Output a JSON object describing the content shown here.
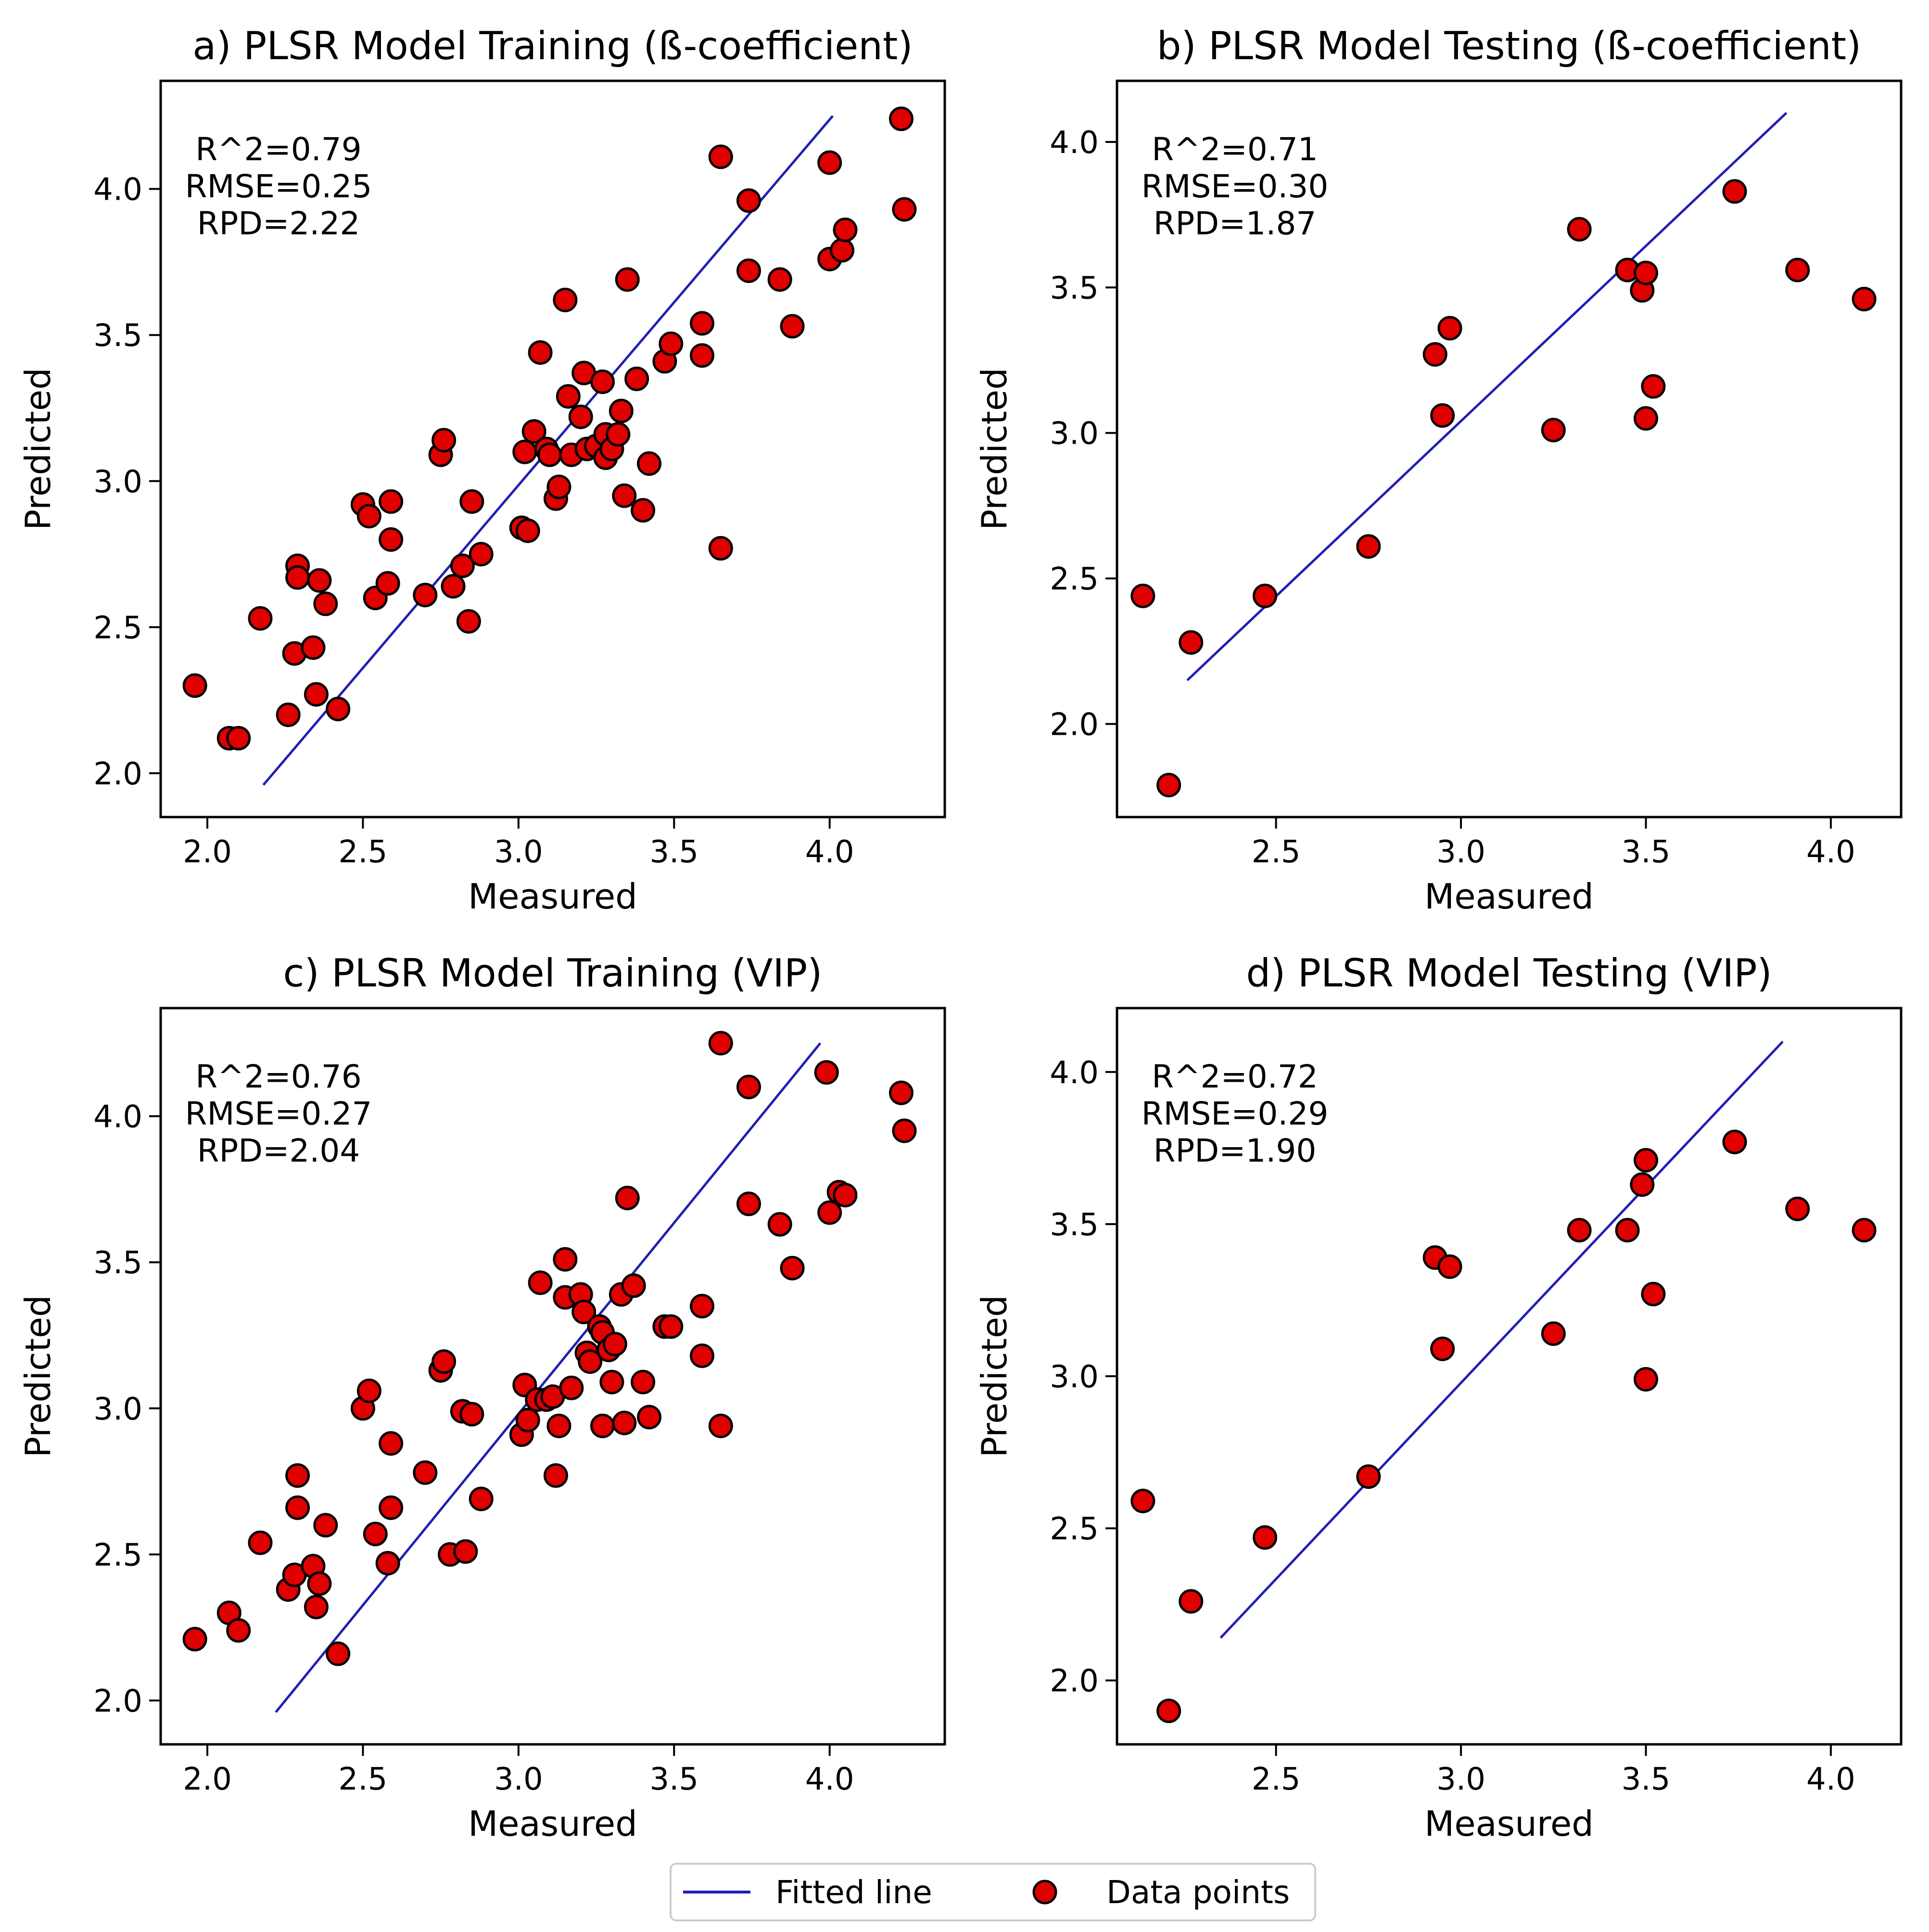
{
  "colors": {
    "line": "#1f1fb4",
    "point_fill": "#e00000",
    "point_edge": "#000000"
  },
  "legend": {
    "line_label": "Fitted line",
    "points_label": "Data points"
  },
  "chart_data": [
    {
      "type": "scatter",
      "title": "a) PLSR Model Training (ß-coefficient)",
      "xlabel": "Measured",
      "ylabel": "Predicted",
      "xlim": [
        1.85,
        4.37
      ],
      "ylim": [
        1.85,
        4.37
      ],
      "xticks": [
        2.0,
        2.5,
        3.0,
        3.5,
        4.0
      ],
      "yticks": [
        2.0,
        2.5,
        3.0,
        3.5,
        4.0
      ],
      "tick_labels_x": [
        "2.0",
        "2.5",
        "3.0",
        "3.5",
        "4.0"
      ],
      "tick_labels_y": [
        "2.0",
        "2.5",
        "3.0",
        "3.5",
        "4.0"
      ],
      "stats": [
        "R^2=0.79",
        "RMSE=0.25",
        "RPD=2.22"
      ],
      "fit_line": [
        [
          2.18,
          1.96
        ],
        [
          4.01,
          4.25
        ]
      ],
      "points": [
        [
          1.96,
          2.3
        ],
        [
          2.07,
          2.12
        ],
        [
          2.1,
          2.12
        ],
        [
          2.17,
          2.53
        ],
        [
          2.26,
          2.2
        ],
        [
          2.28,
          2.41
        ],
        [
          2.29,
          2.71
        ],
        [
          2.29,
          2.67
        ],
        [
          2.34,
          2.43
        ],
        [
          2.35,
          2.27
        ],
        [
          2.36,
          2.66
        ],
        [
          2.38,
          2.58
        ],
        [
          2.42,
          2.22
        ],
        [
          2.5,
          2.92
        ],
        [
          2.52,
          2.88
        ],
        [
          2.54,
          2.6
        ],
        [
          2.58,
          2.65
        ],
        [
          2.59,
          2.8
        ],
        [
          2.59,
          2.93
        ],
        [
          2.7,
          2.61
        ],
        [
          2.75,
          3.09
        ],
        [
          2.76,
          3.14
        ],
        [
          2.79,
          2.64
        ],
        [
          2.82,
          2.71
        ],
        [
          2.84,
          2.52
        ],
        [
          2.85,
          2.93
        ],
        [
          2.88,
          2.75
        ],
        [
          3.01,
          2.84
        ],
        [
          3.02,
          3.1
        ],
        [
          3.03,
          2.83
        ],
        [
          3.05,
          3.17
        ],
        [
          3.07,
          3.44
        ],
        [
          3.09,
          3.11
        ],
        [
          3.1,
          3.09
        ],
        [
          3.12,
          2.94
        ],
        [
          3.13,
          2.98
        ],
        [
          3.15,
          3.62
        ],
        [
          3.16,
          3.29
        ],
        [
          3.17,
          3.09
        ],
        [
          3.2,
          3.22
        ],
        [
          3.21,
          3.37
        ],
        [
          3.22,
          3.11
        ],
        [
          3.25,
          3.12
        ],
        [
          3.27,
          3.34
        ],
        [
          3.28,
          3.08
        ],
        [
          3.28,
          3.16
        ],
        [
          3.3,
          3.11
        ],
        [
          3.32,
          3.16
        ],
        [
          3.33,
          3.24
        ],
        [
          3.34,
          2.95
        ],
        [
          3.35,
          3.69
        ],
        [
          3.38,
          3.35
        ],
        [
          3.4,
          2.9
        ],
        [
          3.42,
          3.06
        ],
        [
          3.47,
          3.41
        ],
        [
          3.49,
          3.47
        ],
        [
          3.59,
          3.43
        ],
        [
          3.59,
          3.54
        ],
        [
          3.65,
          2.77
        ],
        [
          3.65,
          4.11
        ],
        [
          3.74,
          3.96
        ],
        [
          3.74,
          3.72
        ],
        [
          3.84,
          3.69
        ],
        [
          3.88,
          3.53
        ],
        [
          4.0,
          3.76
        ],
        [
          4.0,
          4.09
        ],
        [
          4.04,
          3.79
        ],
        [
          4.05,
          3.86
        ],
        [
          4.23,
          4.24
        ],
        [
          4.24,
          3.93
        ]
      ]
    },
    {
      "type": "scatter",
      "title": "b) PLSR Model Testing (ß-coefficient)",
      "xlabel": "Measured",
      "ylabel": "Predicted",
      "xlim": [
        2.07,
        4.19
      ],
      "ylim": [
        1.68,
        4.21
      ],
      "xticks": [
        2.5,
        3.0,
        3.5,
        4.0
      ],
      "yticks": [
        2.0,
        2.5,
        3.0,
        3.5,
        4.0
      ],
      "tick_labels_x": [
        "2.5",
        "3.0",
        "3.5",
        "4.0"
      ],
      "tick_labels_y": [
        "2.0",
        "2.5",
        "3.0",
        "3.5",
        "4.0"
      ],
      "stats": [
        "R^2=0.71",
        "RMSE=0.30",
        "RPD=1.87"
      ],
      "fit_line": [
        [
          2.26,
          2.15
        ],
        [
          3.88,
          4.1
        ]
      ],
      "points": [
        [
          2.14,
          2.44
        ],
        [
          2.21,
          1.79
        ],
        [
          2.27,
          2.28
        ],
        [
          2.47,
          2.44
        ],
        [
          2.75,
          2.61
        ],
        [
          2.93,
          3.27
        ],
        [
          2.95,
          3.06
        ],
        [
          2.97,
          3.36
        ],
        [
          3.25,
          3.01
        ],
        [
          3.32,
          3.7
        ],
        [
          3.45,
          3.56
        ],
        [
          3.49,
          3.49
        ],
        [
          3.5,
          3.05
        ],
        [
          3.5,
          3.55
        ],
        [
          3.52,
          3.16
        ],
        [
          3.74,
          3.83
        ],
        [
          3.91,
          3.56
        ],
        [
          4.09,
          3.46
        ]
      ]
    },
    {
      "type": "scatter",
      "title": "c) PLSR Model Training (VIP)",
      "xlabel": "Measured",
      "ylabel": "Predicted",
      "xlim": [
        1.85,
        4.37
      ],
      "ylim": [
        1.85,
        4.37
      ],
      "xticks": [
        2.0,
        2.5,
        3.0,
        3.5,
        4.0
      ],
      "yticks": [
        2.0,
        2.5,
        3.0,
        3.5,
        4.0
      ],
      "tick_labels_x": [
        "2.0",
        "2.5",
        "3.0",
        "3.5",
        "4.0"
      ],
      "tick_labels_y": [
        "2.0",
        "2.5",
        "3.0",
        "3.5",
        "4.0"
      ],
      "stats": [
        "R^2=0.76",
        "RMSE=0.27",
        "RPD=2.04"
      ],
      "fit_line": [
        [
          2.22,
          1.96
        ],
        [
          3.97,
          4.25
        ]
      ],
      "points": [
        [
          1.96,
          2.21
        ],
        [
          2.07,
          2.3
        ],
        [
          2.1,
          2.24
        ],
        [
          2.17,
          2.54
        ],
        [
          2.26,
          2.38
        ],
        [
          2.28,
          2.43
        ],
        [
          2.29,
          2.66
        ],
        [
          2.29,
          2.77
        ],
        [
          2.34,
          2.46
        ],
        [
          2.35,
          2.32
        ],
        [
          2.36,
          2.4
        ],
        [
          2.38,
          2.6
        ],
        [
          2.42,
          2.16
        ],
        [
          2.5,
          3.0
        ],
        [
          2.52,
          3.06
        ],
        [
          2.54,
          2.57
        ],
        [
          2.58,
          2.47
        ],
        [
          2.59,
          2.88
        ],
        [
          2.59,
          2.66
        ],
        [
          2.7,
          2.78
        ],
        [
          2.75,
          3.13
        ],
        [
          2.76,
          3.16
        ],
        [
          2.78,
          2.5
        ],
        [
          2.82,
          2.99
        ],
        [
          2.83,
          2.51
        ],
        [
          2.85,
          2.98
        ],
        [
          2.88,
          2.69
        ],
        [
          3.01,
          2.91
        ],
        [
          3.02,
          3.08
        ],
        [
          3.03,
          2.96
        ],
        [
          3.06,
          3.03
        ],
        [
          3.07,
          3.43
        ],
        [
          3.09,
          3.03
        ],
        [
          3.11,
          3.04
        ],
        [
          3.12,
          2.77
        ],
        [
          3.13,
          2.94
        ],
        [
          3.15,
          3.38
        ],
        [
          3.15,
          3.51
        ],
        [
          3.17,
          3.07
        ],
        [
          3.2,
          3.39
        ],
        [
          3.21,
          3.33
        ],
        [
          3.22,
          3.19
        ],
        [
          3.23,
          3.16
        ],
        [
          3.26,
          3.28
        ],
        [
          3.27,
          3.26
        ],
        [
          3.27,
          2.94
        ],
        [
          3.29,
          3.2
        ],
        [
          3.3,
          3.09
        ],
        [
          3.31,
          3.22
        ],
        [
          3.33,
          3.39
        ],
        [
          3.34,
          2.95
        ],
        [
          3.35,
          3.72
        ],
        [
          3.37,
          3.42
        ],
        [
          3.4,
          3.09
        ],
        [
          3.42,
          2.97
        ],
        [
          3.47,
          3.28
        ],
        [
          3.49,
          3.28
        ],
        [
          3.59,
          3.18
        ],
        [
          3.59,
          3.35
        ],
        [
          3.65,
          2.94
        ],
        [
          3.65,
          4.25
        ],
        [
          3.74,
          4.1
        ],
        [
          3.74,
          3.7
        ],
        [
          3.84,
          3.63
        ],
        [
          3.88,
          3.48
        ],
        [
          3.99,
          4.15
        ],
        [
          4.0,
          3.67
        ],
        [
          4.03,
          3.74
        ],
        [
          4.05,
          3.73
        ],
        [
          4.23,
          4.08
        ],
        [
          4.24,
          3.95
        ]
      ]
    },
    {
      "type": "scatter",
      "title": "d) PLSR Model Testing (VIP)",
      "xlabel": "Measured",
      "ylabel": "Predicted",
      "xlim": [
        2.07,
        4.19
      ],
      "ylim": [
        1.79,
        4.21
      ],
      "xticks": [
        2.5,
        3.0,
        3.5,
        4.0
      ],
      "yticks": [
        2.0,
        2.5,
        3.0,
        3.5,
        4.0
      ],
      "tick_labels_x": [
        "2.5",
        "3.0",
        "3.5",
        "4.0"
      ],
      "tick_labels_y": [
        "2.0",
        "2.5",
        "3.0",
        "3.5",
        "4.0"
      ],
      "stats": [
        "R^2=0.72",
        "RMSE=0.29",
        "RPD=1.90"
      ],
      "fit_line": [
        [
          2.35,
          2.14
        ],
        [
          3.87,
          4.1
        ]
      ],
      "points": [
        [
          2.14,
          2.59
        ],
        [
          2.21,
          1.9
        ],
        [
          2.27,
          2.26
        ],
        [
          2.47,
          2.47
        ],
        [
          2.75,
          2.67
        ],
        [
          2.93,
          3.39
        ],
        [
          2.95,
          3.09
        ],
        [
          2.97,
          3.36
        ],
        [
          3.25,
          3.14
        ],
        [
          3.32,
          3.48
        ],
        [
          3.45,
          3.48
        ],
        [
          3.49,
          3.63
        ],
        [
          3.5,
          2.99
        ],
        [
          3.5,
          3.71
        ],
        [
          3.52,
          3.27
        ],
        [
          3.74,
          3.77
        ],
        [
          3.91,
          3.55
        ],
        [
          4.09,
          3.48
        ]
      ]
    }
  ]
}
